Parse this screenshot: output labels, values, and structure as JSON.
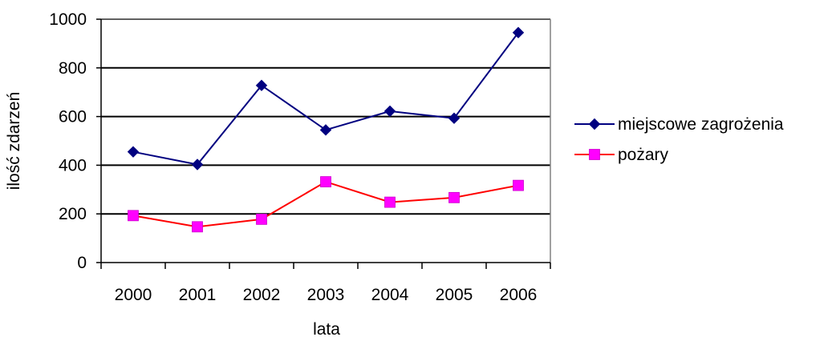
{
  "chart_data": {
    "type": "line",
    "categories": [
      "2000",
      "2001",
      "2002",
      "2003",
      "2004",
      "2005",
      "2006"
    ],
    "series": [
      {
        "name": "miejscowe zagrożenia",
        "values": [
          455,
          403,
          728,
          545,
          622,
          593,
          945
        ],
        "color": "#000080",
        "marker": "diamond"
      },
      {
        "name": "pożary",
        "values": [
          193,
          147,
          178,
          332,
          248,
          267,
          317
        ],
        "color": "#ff0000",
        "marker_color": "#ff00ff",
        "marker": "square"
      }
    ],
    "xlabel": "lata",
    "ylabel": "ilość zdarzeń",
    "ylim": [
      0,
      1000
    ],
    "yticks": [
      "0",
      "200",
      "400",
      "600",
      "800",
      "1000"
    ],
    "grid": true,
    "legend": "right"
  }
}
